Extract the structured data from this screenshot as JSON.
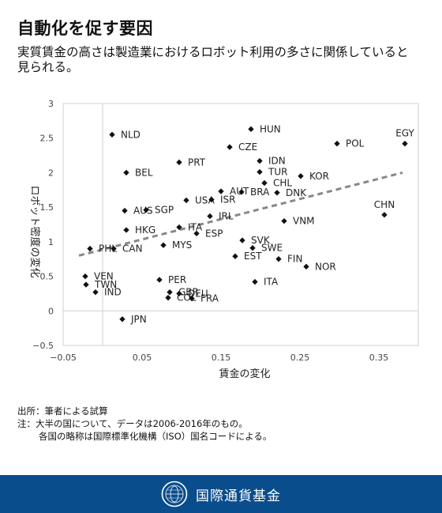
{
  "title": "自動化を促す要因",
  "subtitle": "実質賃金の高さは製造業におけるロボット利用の多さに関係していると見られる。",
  "chart_data": {
    "type": "scatter",
    "title": "",
    "xlabel": "賃金の変化",
    "ylabel": "ロボット密度の変化",
    "xlim": [
      -0.05,
      0.4
    ],
    "ylim": [
      -0.5,
      3
    ],
    "xticks": [
      -0.05,
      0.05,
      0.15,
      0.25,
      0.35
    ],
    "yticks": [
      -0.5,
      0,
      0.5,
      1,
      1.5,
      2,
      2.5,
      3
    ],
    "xtick_labels": [
      "−0.05",
      "0.05",
      "0.15",
      "0.25",
      "0.35"
    ],
    "ytick_labels": [
      "−0.5",
      "0",
      "0.5",
      "1",
      "1.5",
      "2",
      "2.5",
      "3"
    ],
    "grid": false,
    "trendline": {
      "style": "dashed",
      "color": "#888888",
      "x": [
        -0.03,
        0.38
      ],
      "y": [
        0.8,
        2.0
      ]
    },
    "points": [
      {
        "label": "NLD",
        "x": 0.012,
        "y": 2.55
      },
      {
        "label": "HUN",
        "x": 0.188,
        "y": 2.63
      },
      {
        "label": "EGY",
        "x": 0.383,
        "y": 2.42
      },
      {
        "label": "POL",
        "x": 0.297,
        "y": 2.42
      },
      {
        "label": "CZE",
        "x": 0.161,
        "y": 2.37
      },
      {
        "label": "PRT",
        "x": 0.097,
        "y": 2.15
      },
      {
        "label": "IDN",
        "x": 0.199,
        "y": 2.17
      },
      {
        "label": "BEL",
        "x": 0.03,
        "y": 2.0
      },
      {
        "label": "TUR",
        "x": 0.199,
        "y": 2.01
      },
      {
        "label": "KOR",
        "x": 0.251,
        "y": 1.95
      },
      {
        "label": "CHL",
        "x": 0.205,
        "y": 1.85
      },
      {
        "label": "AUT",
        "x": 0.15,
        "y": 1.73
      },
      {
        "label": "BRA",
        "x": 0.176,
        "y": 1.72
      },
      {
        "label": "DNK",
        "x": 0.221,
        "y": 1.71
      },
      {
        "label": "USA",
        "x": 0.106,
        "y": 1.6
      },
      {
        "label": "ISR",
        "x": 0.138,
        "y": 1.61
      },
      {
        "label": "AUS",
        "x": 0.028,
        "y": 1.45
      },
      {
        "label": "SGP",
        "x": 0.055,
        "y": 1.46
      },
      {
        "label": "IRL",
        "x": 0.136,
        "y": 1.37
      },
      {
        "label": "VNM",
        "x": 0.23,
        "y": 1.3
      },
      {
        "label": "CHN",
        "x": 0.357,
        "y": 1.39
      },
      {
        "label": "PHL",
        "x": -0.016,
        "y": 0.9
      },
      {
        "label": "HKG",
        "x": 0.03,
        "y": 1.17
      },
      {
        "label": "ITA",
        "x": 0.097,
        "y": 1.21
      },
      {
        "label": "ESP",
        "x": 0.119,
        "y": 1.12
      },
      {
        "label": "SVK",
        "x": 0.177,
        "y": 1.02
      },
      {
        "label": "CAN",
        "x": 0.014,
        "y": 0.9
      },
      {
        "label": "MYS",
        "x": 0.077,
        "y": 0.95
      },
      {
        "label": "SWE",
        "x": 0.19,
        "y": 0.91
      },
      {
        "label": "EST",
        "x": 0.168,
        "y": 0.79
      },
      {
        "label": "FIN",
        "x": 0.223,
        "y": 0.75
      },
      {
        "label": "NOR",
        "x": 0.258,
        "y": 0.64
      },
      {
        "label": "VEN",
        "x": -0.022,
        "y": 0.5
      },
      {
        "label": "PER",
        "x": 0.072,
        "y": 0.45
      },
      {
        "label": "TWN",
        "x": -0.021,
        "y": 0.38
      },
      {
        "label": "ITA",
        "x": 0.193,
        "y": 0.42
      },
      {
        "label": "GBR",
        "x": 0.085,
        "y": 0.27
      },
      {
        "label": "DEU",
        "x": 0.097,
        "y": 0.25
      },
      {
        "label": "IND",
        "x": -0.009,
        "y": 0.27
      },
      {
        "label": "COL",
        "x": 0.083,
        "y": 0.19
      },
      {
        "label": "FRA",
        "x": 0.113,
        "y": 0.18
      },
      {
        "label": "JPN",
        "x": 0.025,
        "y": -0.12
      }
    ]
  },
  "notes": {
    "source": "出所：筆者による試算",
    "note1": "注：大半の国について、データは2006-2016年のもの。",
    "note2": "各国の略称は国際標準化機構（ISO）国名コードによる。"
  },
  "footer": {
    "org": "国際通貨基金"
  },
  "colors": {
    "footer_bg": "#0a4d8c",
    "marker": "#111111",
    "trendline": "#888888"
  }
}
